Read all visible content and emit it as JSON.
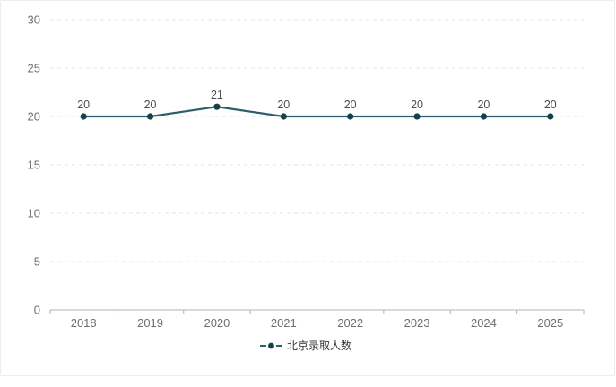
{
  "chart_data": {
    "type": "line",
    "title": "",
    "categories": [
      "2018",
      "2019",
      "2020",
      "2021",
      "2022",
      "2023",
      "2024",
      "2025"
    ],
    "series": [
      {
        "name": "北京录取人数",
        "values": [
          20,
          20,
          21,
          20,
          20,
          20,
          20,
          20
        ]
      }
    ],
    "xlabel": "",
    "ylabel": "",
    "ylim": [
      0,
      30
    ],
    "y_ticks": [
      0,
      5,
      10,
      15,
      20,
      25,
      30
    ],
    "grid": "dashed-horizontal",
    "show_data_labels": true,
    "legend_position": "bottom-center"
  },
  "legend": {
    "label": "北京录取人数"
  },
  "colors": {
    "line": "#2a5f6a",
    "marker": "#12404c",
    "grid": "#e6e6e6",
    "axis": "#b3b3b3",
    "tick_label": "#6e6e6e",
    "data_label": "#4d4d4d",
    "legend_text": "#333333",
    "card_border": "#e9eef0",
    "background": "#ffffff"
  }
}
